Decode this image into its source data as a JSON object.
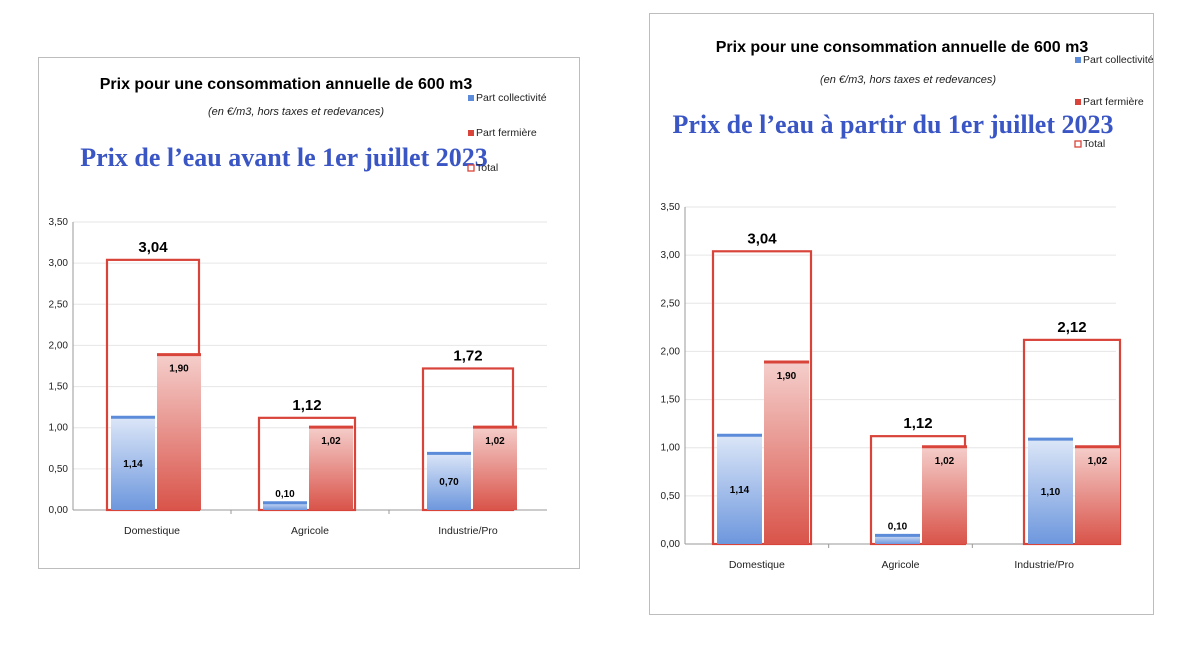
{
  "colors": {
    "blue": "#5b8bd9",
    "red": "#d9443a",
    "headline": "#3a55c4",
    "grid": "#e6e6e6"
  },
  "chart_data": [
    {
      "type": "bar",
      "title": "Prix pour une consommation annuelle de 600 m3",
      "subtitle": "(en €/m3, hors taxes et redevances)",
      "headline": "Prix de l’eau avant le 1er juillet 2023",
      "categories": [
        "Domestique",
        "Agricole",
        "Industrie/Pro"
      ],
      "series": [
        {
          "name": "Part collectivité",
          "values": [
            1.14,
            0.1,
            0.7
          ],
          "labels": [
            "1,14",
            "0,10",
            "0,70"
          ]
        },
        {
          "name": "Part fermière",
          "values": [
            1.9,
            1.02,
            1.02
          ],
          "labels": [
            "1,90",
            "1,02",
            "1,02"
          ]
        },
        {
          "name": "Total",
          "values": [
            3.04,
            1.12,
            1.72
          ],
          "labels": [
            "3,04",
            "1,12",
            "1,72"
          ]
        }
      ],
      "yticks": [
        "0,00",
        "0,50",
        "1,00",
        "1,50",
        "2,00",
        "2,50",
        "3,00",
        "3,50"
      ],
      "ylim": [
        0,
        3.5
      ],
      "grid": true,
      "legend": "top-right"
    },
    {
      "type": "bar",
      "title": "Prix pour une consommation annuelle de 600 m3",
      "subtitle": "(en €/m3, hors taxes et redevances)",
      "headline": "Prix de l’eau à partir du 1er juillet 2023",
      "categories": [
        "Domestique",
        "Agricole",
        "Industrie/Pro"
      ],
      "series": [
        {
          "name": "Part collectivité",
          "values": [
            1.14,
            0.1,
            1.1
          ],
          "labels": [
            "1,14",
            "0,10",
            "1,10"
          ]
        },
        {
          "name": "Part fermière",
          "values": [
            1.9,
            1.02,
            1.02
          ],
          "labels": [
            "1,90",
            "1,02",
            "1,02"
          ]
        },
        {
          "name": "Total",
          "values": [
            3.04,
            1.12,
            2.12
          ],
          "labels": [
            "3,04",
            "1,12",
            "2,12"
          ]
        }
      ],
      "yticks": [
        "0,00",
        "0,50",
        "1,00",
        "1,50",
        "2,00",
        "2,50",
        "3,00",
        "3,50"
      ],
      "ylim": [
        0,
        3.5
      ],
      "grid": true,
      "legend": "top-right"
    }
  ]
}
